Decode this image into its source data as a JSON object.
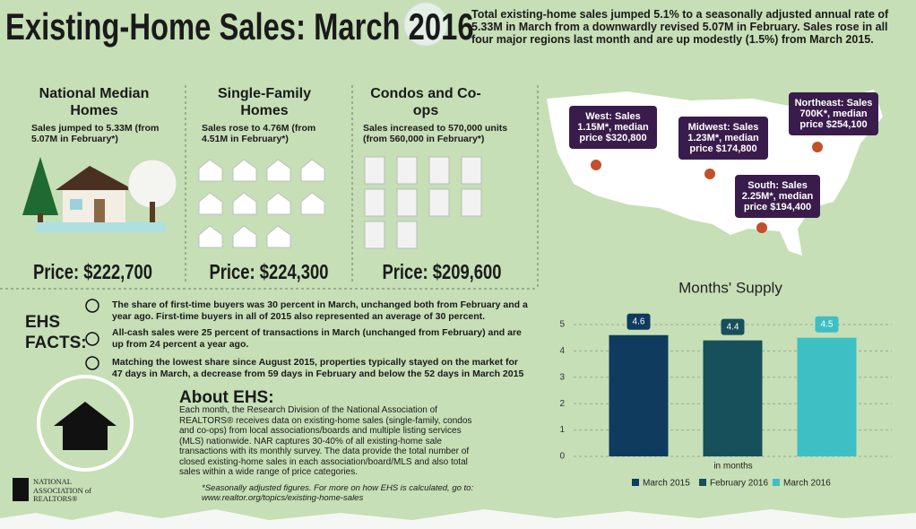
{
  "header": {
    "title": "Existing-Home Sales: March 2016",
    "summary": "Total existing-home sales jumped 5.1% to a seasonally adjusted annual rate of 5.33M in March from a downwardly revised 5.07M in February. Sales rose in all four major regions last month and are up modestly (1.5%) from March 2015."
  },
  "columns": [
    {
      "title": "National Median Homes",
      "text": "Sales jumped to 5.33M (from 5.07M in February*)",
      "price": "Price: $222,700"
    },
    {
      "title": "Single-Family Homes",
      "text": "Sales rose to 4.76M (from 4.51M in February*)",
      "price": "Price: $224,300"
    },
    {
      "title": "Condos and Co-ops",
      "text": "Sales increased to 570,000 units (from 560,000 in February*)",
      "price": "Price: $209,600"
    }
  ],
  "regions": [
    {
      "label": "West: Sales 1.15M*, median price $320,800"
    },
    {
      "label": "Midwest: Sales 1.23M*, median price $174,800"
    },
    {
      "label": "Northeast: Sales 700K*, median price $254,100"
    },
    {
      "label": "South: Sales 2.25M*, median price $194,400"
    }
  ],
  "facts": {
    "title": "EHS FACTS:",
    "items": [
      "The share of first-time buyers was 30 percent in March, unchanged both from February and a year ago. First-time buyers in all of 2015 also represented an average of 30 percent.",
      "All-cash sales were 25 percent of transactions in March (unchanged from February) and are up from 24 percent a year ago.",
      "Matching the lowest share since August 2015, properties typically stayed on the market for 47 days in March, a decrease from 59 days in February and below the 52 days in March 2015"
    ]
  },
  "about": {
    "title": "About EHS:",
    "text": "Each month, the Research Division of the National Association of REALTORS® receives data on existing-home sales (single-family, condos and co-ops) from local associations/boards and multiple listing services (MLS) nationwide. NAR captures 30-40% of all existing-home sale transactions with its monthly survey. The data provide the total number of closed existing-home sales in each association/board/MLS and also total sales within a wide range of price categories."
  },
  "logo": {
    "line1": "NATIONAL",
    "line2": "ASSOCIATION of",
    "line3": "REALTORS®"
  },
  "footnote": "*Seasonally adjusted figures. For more on how EHS is calculated, go to: www.realtor.org/topics/existing-home-sales",
  "chart_data": {
    "type": "bar",
    "title": "Months' Supply",
    "x_label": "in months",
    "series": [
      {
        "name": "March 2015",
        "color": "#0e3b5e",
        "values": [
          4.6
        ]
      },
      {
        "name": "February 2016",
        "color": "#174f5a",
        "values": [
          4.4
        ]
      },
      {
        "name": "March 2016",
        "color": "#3dbfc4",
        "values": [
          4.5
        ]
      }
    ],
    "ylim": [
      0,
      5
    ],
    "yticks": [
      0,
      1,
      2,
      3,
      4,
      5
    ],
    "grid": true
  }
}
